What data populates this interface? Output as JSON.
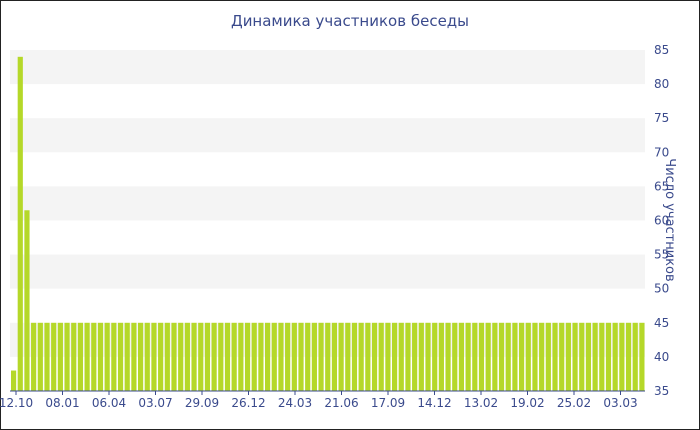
{
  "chart_data": {
    "type": "bar",
    "title": "Динамика участников беседы",
    "ylabel": "Число участников",
    "xlabel": "",
    "ylim": [
      35,
      85
    ],
    "y_ticks": [
      35,
      40,
      45,
      50,
      55,
      60,
      65,
      70,
      75,
      80,
      85
    ],
    "x_tick_labels": [
      "12.10",
      "08.01",
      "06.04",
      "03.07",
      "29.09",
      "26.12",
      "24.03",
      "21.06",
      "17.09",
      "14.12",
      "13.02",
      "19.02",
      "25.02",
      "03.03"
    ],
    "bar_color": "#b5d829",
    "grid": true,
    "values": [
      38,
      84,
      61.5,
      45,
      45,
      45,
      45,
      45,
      45,
      45,
      45,
      45,
      45,
      45,
      45,
      45,
      45,
      45,
      45,
      45,
      45,
      45,
      45,
      45,
      45,
      45,
      45,
      45,
      45,
      45,
      45,
      45,
      45,
      45,
      45,
      45,
      45,
      45,
      45,
      45,
      45,
      45,
      45,
      45,
      45,
      45,
      45,
      45,
      45,
      45,
      45,
      45,
      45,
      45,
      45,
      45,
      45,
      45,
      45,
      45,
      45,
      45,
      45,
      45,
      45,
      45,
      45,
      45,
      45,
      45,
      45,
      45,
      45,
      45,
      45,
      45,
      45,
      45,
      45,
      45,
      45,
      45,
      45,
      45,
      45,
      45,
      45,
      45,
      45,
      45,
      45,
      45,
      45,
      45,
      45
    ]
  }
}
